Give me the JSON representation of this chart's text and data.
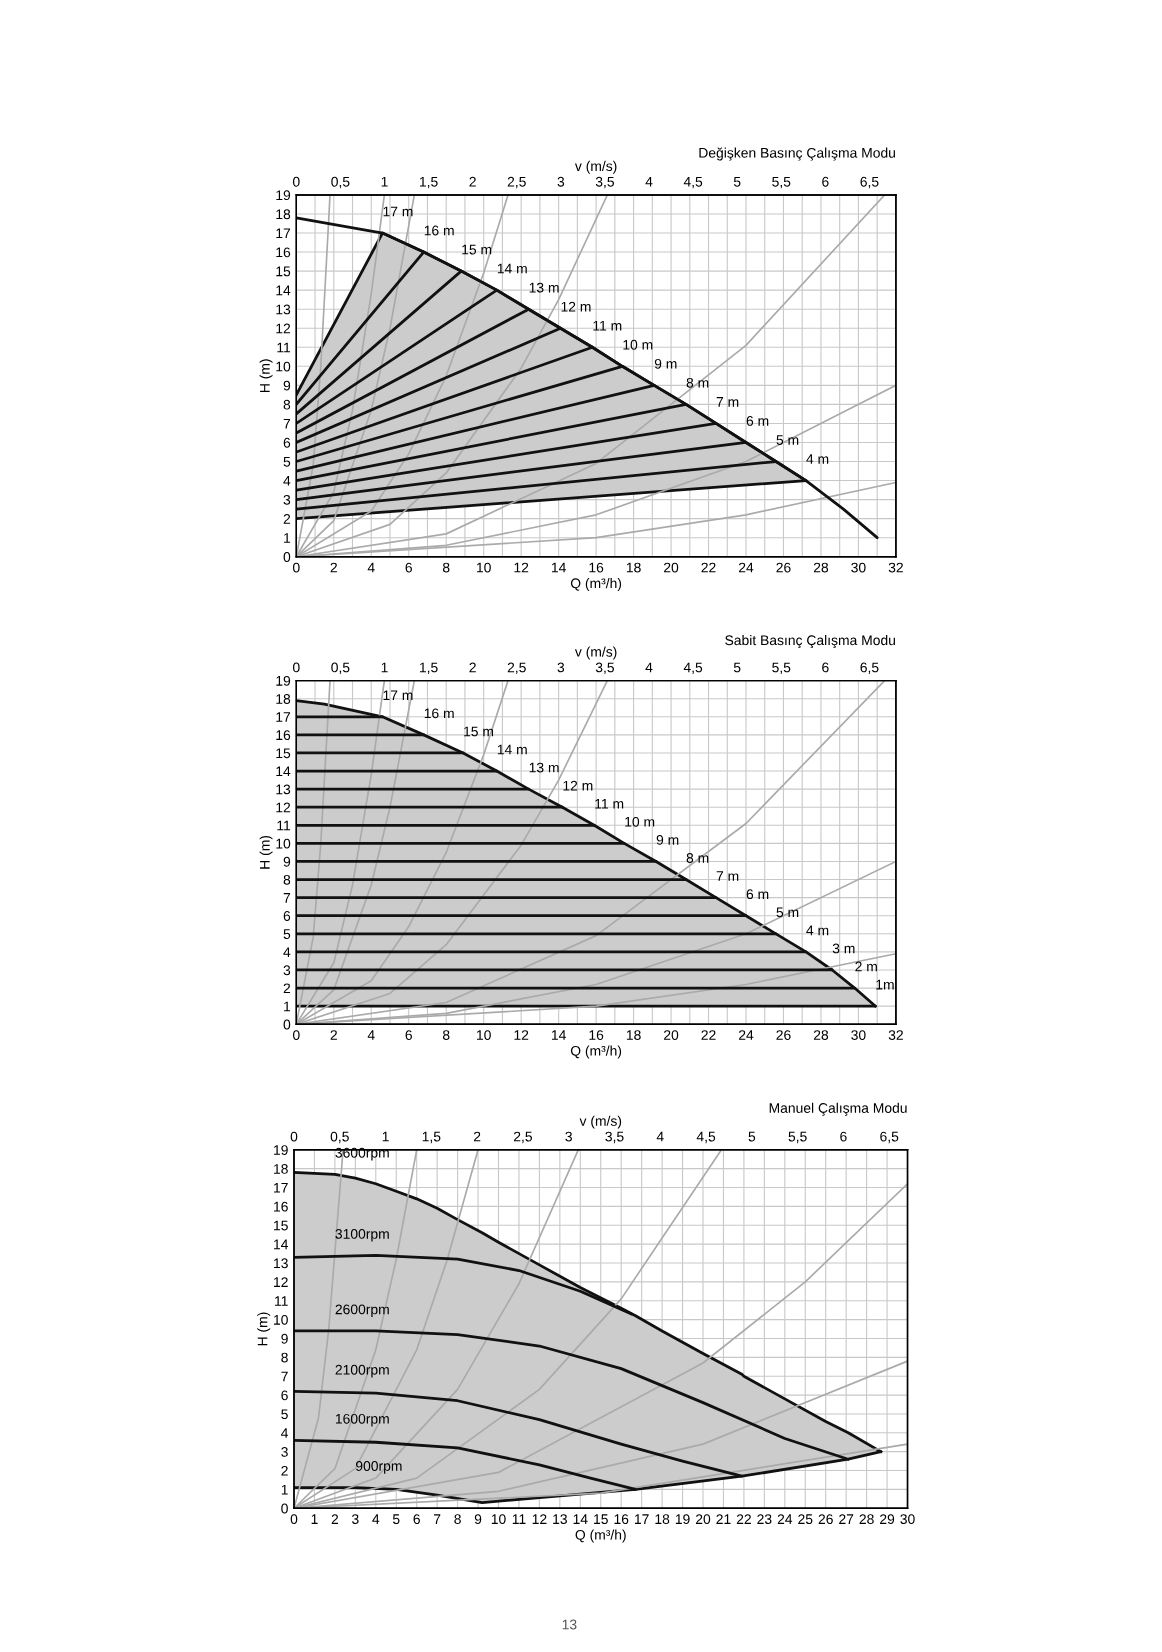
{
  "chart_data": [
    {
      "type": "line",
      "title": "Değişken Basınç Çalışma Modu",
      "xlabel": "Q (m³/h)",
      "ylabel": "H (m)",
      "x2label": "v (m/s)",
      "xlim": [
        0,
        32
      ],
      "ylim": [
        0,
        19
      ],
      "x2lim": [
        0,
        6.8
      ],
      "grid": true,
      "xticks": [
        0,
        {
          "value": 1,
          "label": null
        },
        2,
        {
          "value": 3,
          "label": null
        },
        4,
        {
          "value": 5,
          "label": null
        },
        6,
        {
          "value": 7,
          "label": null
        },
        8,
        {
          "value": 9,
          "label": null
        },
        10,
        {
          "value": 11,
          "label": null
        },
        12,
        {
          "value": 13,
          "label": null
        },
        14,
        {
          "value": 15,
          "label": null
        },
        16,
        {
          "value": 17,
          "label": null
        },
        18,
        {
          "value": 19,
          "label": null
        },
        20,
        {
          "value": 21,
          "label": null
        },
        22,
        {
          "value": 23,
          "label": null
        },
        24,
        {
          "value": 25,
          "label": null
        },
        26,
        {
          "value": 27,
          "label": null
        },
        28,
        {
          "value": 29,
          "label": null
        },
        30,
        {
          "value": 31,
          "label": null
        },
        32
      ],
      "yticks": [
        0,
        1,
        2,
        3,
        4,
        5,
        6,
        7,
        8,
        9,
        10,
        11,
        12,
        13,
        14,
        15,
        16,
        17,
        18,
        19
      ],
      "x2ticks": [
        0,
        {
          "value": 0.5,
          "label": "0,5"
        },
        1,
        {
          "value": 1.5,
          "label": "1,5"
        },
        2,
        {
          "value": 2.5,
          "label": "2,5"
        },
        3,
        {
          "value": 3.5,
          "label": "3,5"
        },
        4,
        {
          "value": 4.5,
          "label": "4,5"
        },
        5,
        {
          "value": 5.5,
          "label": "5,5"
        },
        6,
        {
          "value": 6.5,
          "label": "6,5"
        }
      ],
      "series": [
        {
          "type": "area",
          "color": "#cccccc",
          "x": [
            0,
            4.6,
            6.8,
            8.8,
            10.7,
            12.4,
            14.1,
            15.8,
            17.4,
            19.1,
            20.8,
            22.4,
            24.0,
            25.6,
            27.2
          ],
          "values": [
            8.5,
            17,
            16,
            15,
            14,
            13,
            12,
            11,
            10,
            9,
            8,
            7,
            6,
            5,
            4
          ]
        },
        {
          "color": "#111111",
          "x": [
            0,
            27.2
          ],
          "values": [
            2,
            4
          ]
        },
        {
          "color": "#aaaaaa",
          "x": [
            0,
            0.9,
            1.3,
            1.8
          ],
          "values": [
            0,
            4.8,
            9.9,
            19
          ]
        },
        {
          "color": "#aaaaaa",
          "x": [
            0,
            2,
            3,
            4,
            4.7
          ],
          "values": [
            0,
            3.4,
            7.7,
            13.8,
            19
          ]
        },
        {
          "color": "#aaaaaa",
          "x": [
            0,
            2,
            4,
            5,
            6.3
          ],
          "values": [
            0,
            1.9,
            7.7,
            12,
            19
          ]
        },
        {
          "color": "#aaaaaa",
          "x": [
            0,
            4,
            6,
            8,
            10,
            11.3
          ],
          "values": [
            0,
            2.4,
            5.4,
            9.5,
            14.9,
            19
          ]
        },
        {
          "color": "#aaaaaa",
          "x": [
            0,
            5,
            8,
            12,
            14,
            16.6
          ],
          "values": [
            0,
            1.7,
            4.4,
            9.9,
            13.5,
            19
          ]
        },
        {
          "color": "#aaaaaa",
          "x": [
            0,
            8,
            16,
            24,
            31.4
          ],
          "values": [
            0,
            1.2,
            4.9,
            11.1,
            19
          ]
        },
        {
          "color": "#aaaaaa",
          "x": [
            0,
            8,
            16,
            24,
            32
          ],
          "values": [
            0,
            0.6,
            2.2,
            5,
            9
          ]
        },
        {
          "color": "#aaaaaa",
          "x": [
            0,
            16,
            24,
            32
          ],
          "values": [
            0,
            1,
            2.2,
            3.9
          ]
        },
        {
          "color": "#111111",
          "x": [
            0,
            4.6,
            6.8,
            8.8,
            10.7,
            12.4,
            14.1,
            15.8,
            17.4,
            19.1,
            20.8,
            22.4,
            24.0,
            25.6,
            27.2,
            29.2,
            31
          ],
          "values": [
            17.8,
            17,
            16,
            15,
            14,
            13,
            12,
            11,
            10,
            9,
            8,
            7,
            6,
            5,
            4,
            2.5,
            1
          ]
        },
        {
          "color": "#111111",
          "x": [
            0,
            6.8
          ],
          "values": [
            8,
            16
          ]
        },
        {
          "color": "#111111",
          "x": [
            0,
            8.8
          ],
          "values": [
            7.5,
            15
          ]
        },
        {
          "color": "#111111",
          "x": [
            0,
            10.7
          ],
          "values": [
            7,
            14
          ]
        },
        {
          "color": "#111111",
          "x": [
            0,
            12.4
          ],
          "values": [
            6.5,
            13
          ]
        },
        {
          "color": "#111111",
          "x": [
            0,
            14.1
          ],
          "values": [
            6,
            12
          ]
        },
        {
          "color": "#111111",
          "x": [
            0,
            15.8
          ],
          "values": [
            5.5,
            11
          ]
        },
        {
          "color": "#111111",
          "x": [
            0,
            17.4
          ],
          "values": [
            5,
            10
          ]
        },
        {
          "color": "#111111",
          "x": [
            0,
            19.1
          ],
          "values": [
            4.5,
            9
          ]
        },
        {
          "color": "#111111",
          "x": [
            0,
            20.8
          ],
          "values": [
            4,
            8
          ]
        },
        {
          "color": "#111111",
          "x": [
            0,
            22.4
          ],
          "values": [
            3.5,
            7
          ]
        },
        {
          "color": "#111111",
          "x": [
            0,
            24.0
          ],
          "values": [
            3,
            6
          ]
        },
        {
          "color": "#111111",
          "x": [
            0,
            25.6
          ],
          "values": [
            2.5,
            5
          ]
        }
      ],
      "annotations": [
        {
          "text": "17 m",
          "x": 4.6,
          "y": 17
        },
        {
          "text": "16 m",
          "x": 6.8,
          "y": 16
        },
        {
          "text": "15 m",
          "x": 8.8,
          "y": 15
        },
        {
          "text": "14 m",
          "x": 10.7,
          "y": 14
        },
        {
          "text": "13 m",
          "x": 12.4,
          "y": 13
        },
        {
          "text": "12 m",
          "x": 14.1,
          "y": 12
        },
        {
          "text": "11 m",
          "x": 15.8,
          "y": 11
        },
        {
          "text": "10 m",
          "x": 17.4,
          "y": 10
        },
        {
          "text": "9 m",
          "x": 19.1,
          "y": 9
        },
        {
          "text": "8 m",
          "x": 20.8,
          "y": 8
        },
        {
          "text": "7 m",
          "x": 22.4,
          "y": 7
        },
        {
          "text": "6 m",
          "x": 24.0,
          "y": 6
        },
        {
          "text": "5 m",
          "x": 25.6,
          "y": 5
        },
        {
          "text": "4 m",
          "x": 27.2,
          "y": 4
        }
      ]
    },
    {
      "type": "line",
      "title": "Sabit Basınç Çalışma Modu",
      "xlabel": "Q (m³/h)",
      "ylabel": "H (m)",
      "x2label": "v (m/s)",
      "xlim": [
        0,
        32
      ],
      "ylim": [
        0,
        19
      ],
      "x2lim": [
        0,
        6.8
      ],
      "grid": true,
      "xticks": [
        0,
        {
          "value": 1,
          "label": null
        },
        2,
        {
          "value": 3,
          "label": null
        },
        4,
        {
          "value": 5,
          "label": null
        },
        6,
        {
          "value": 7,
          "label": null
        },
        8,
        {
          "value": 9,
          "label": null
        },
        10,
        {
          "value": 11,
          "label": null
        },
        12,
        {
          "value": 13,
          "label": null
        },
        14,
        {
          "value": 15,
          "label": null
        },
        16,
        {
          "value": 17,
          "label": null
        },
        18,
        {
          "value": 19,
          "label": null
        },
        20,
        {
          "value": 21,
          "label": null
        },
        22,
        {
          "value": 23,
          "label": null
        },
        24,
        {
          "value": 25,
          "label": null
        },
        26,
        {
          "value": 27,
          "label": null
        },
        28,
        {
          "value": 29,
          "label": null
        },
        30,
        {
          "value": 31,
          "label": null
        },
        32
      ],
      "yticks": [
        0,
        1,
        2,
        3,
        4,
        5,
        6,
        7,
        8,
        9,
        10,
        11,
        12,
        13,
        14,
        15,
        16,
        17,
        18,
        19
      ],
      "x2ticks": [
        0,
        {
          "value": 0.5,
          "label": "0,5"
        },
        1,
        {
          "value": 1.5,
          "label": "1,5"
        },
        2,
        {
          "value": 2.5,
          "label": "2,5"
        },
        3,
        {
          "value": 3.5,
          "label": "3,5"
        },
        4,
        {
          "value": 4.5,
          "label": "4,5"
        },
        5,
        {
          "value": 5.5,
          "label": "5,5"
        },
        6,
        {
          "value": 6.5,
          "label": "6,5"
        }
      ],
      "series": [
        {
          "type": "area",
          "color": "#cccccc",
          "x": [
            0,
            1.5,
            4.6,
            6.8,
            8.9,
            10.7,
            12.4,
            14.2,
            15.9,
            17.5,
            19.2,
            20.8,
            22.4,
            24,
            25.6,
            27.2,
            28.6,
            29.8,
            30.9
          ],
          "values": [
            17.9,
            17.7,
            17,
            16,
            15,
            14,
            13,
            12,
            11,
            10,
            9,
            8,
            7,
            6,
            5,
            4,
            3,
            2,
            1
          ]
        },
        {
          "color": "#111111",
          "x": [
            0,
            30.9
          ],
          "values": [
            1,
            1
          ]
        },
        {
          "color": "#aaaaaa",
          "x": [
            0,
            0.9,
            1.3,
            1.8
          ],
          "values": [
            0,
            4.8,
            9.9,
            19
          ]
        },
        {
          "color": "#aaaaaa",
          "x": [
            0,
            2,
            3,
            4,
            4.7
          ],
          "values": [
            0,
            3.4,
            7.7,
            13.8,
            19
          ]
        },
        {
          "color": "#aaaaaa",
          "x": [
            0,
            2,
            4,
            5,
            6.3
          ],
          "values": [
            0,
            1.9,
            7.7,
            12,
            19
          ]
        },
        {
          "color": "#aaaaaa",
          "x": [
            0,
            4,
            6,
            8,
            10,
            11.3
          ],
          "values": [
            0,
            2.4,
            5.4,
            9.5,
            14.9,
            19
          ]
        },
        {
          "color": "#aaaaaa",
          "x": [
            0,
            5,
            8,
            12,
            14,
            16.6
          ],
          "values": [
            0,
            1.7,
            4.4,
            9.9,
            13.5,
            19
          ]
        },
        {
          "color": "#aaaaaa",
          "x": [
            0,
            8,
            16,
            24,
            31.4
          ],
          "values": [
            0,
            1.2,
            4.9,
            11.1,
            19
          ]
        },
        {
          "color": "#aaaaaa",
          "x": [
            0,
            8,
            16,
            24,
            32
          ],
          "values": [
            0,
            0.6,
            2.2,
            5,
            9
          ]
        },
        {
          "color": "#aaaaaa",
          "x": [
            0,
            16,
            24,
            32
          ],
          "values": [
            0,
            1,
            2.2,
            3.9
          ]
        },
        {
          "color": "#111111",
          "x": [
            0,
            4.6
          ],
          "values": [
            17,
            17
          ]
        },
        {
          "color": "#111111",
          "x": [
            0,
            6.8
          ],
          "values": [
            16,
            16
          ]
        },
        {
          "color": "#111111",
          "x": [
            0,
            8.9
          ],
          "values": [
            15,
            15
          ]
        },
        {
          "color": "#111111",
          "x": [
            0,
            10.7
          ],
          "values": [
            14,
            14
          ]
        },
        {
          "color": "#111111",
          "x": [
            0,
            12.4
          ],
          "values": [
            13,
            13
          ]
        },
        {
          "color": "#111111",
          "x": [
            0,
            14.2
          ],
          "values": [
            12,
            12
          ]
        },
        {
          "color": "#111111",
          "x": [
            0,
            15.9
          ],
          "values": [
            11,
            11
          ]
        },
        {
          "color": "#111111",
          "x": [
            0,
            17.5
          ],
          "values": [
            10,
            10
          ]
        },
        {
          "color": "#111111",
          "x": [
            0,
            19.2
          ],
          "values": [
            9,
            9
          ]
        },
        {
          "color": "#111111",
          "x": [
            0,
            20.8
          ],
          "values": [
            8,
            8
          ]
        },
        {
          "color": "#111111",
          "x": [
            0,
            22.4
          ],
          "values": [
            7,
            7
          ]
        },
        {
          "color": "#111111",
          "x": [
            0,
            24
          ],
          "values": [
            6,
            6
          ]
        },
        {
          "color": "#111111",
          "x": [
            0,
            25.6
          ],
          "values": [
            5,
            5
          ]
        },
        {
          "color": "#111111",
          "x": [
            0,
            27.2
          ],
          "values": [
            4,
            4
          ]
        },
        {
          "color": "#111111",
          "x": [
            0,
            28.6
          ],
          "values": [
            3,
            3
          ]
        },
        {
          "color": "#111111",
          "x": [
            0,
            29.8
          ],
          "values": [
            2,
            2
          ]
        }
      ],
      "annotations": [
        {
          "text": "17 m",
          "x": 4.6,
          "y": 17
        },
        {
          "text": "16 m",
          "x": 6.8,
          "y": 16
        },
        {
          "text": "15 m",
          "x": 8.9,
          "y": 15
        },
        {
          "text": "14 m",
          "x": 10.7,
          "y": 14
        },
        {
          "text": "13 m",
          "x": 12.4,
          "y": 13
        },
        {
          "text": "12 m",
          "x": 14.2,
          "y": 12
        },
        {
          "text": "11 m",
          "x": 15.9,
          "y": 11
        },
        {
          "text": "10 m",
          "x": 17.5,
          "y": 10
        },
        {
          "text": "9 m",
          "x": 19.2,
          "y": 9
        },
        {
          "text": "8 m",
          "x": 20.8,
          "y": 8
        },
        {
          "text": "7 m",
          "x": 22.4,
          "y": 7
        },
        {
          "text": "6 m",
          "x": 24,
          "y": 6
        },
        {
          "text": "5 m",
          "x": 25.6,
          "y": 5
        },
        {
          "text": "4 m",
          "x": 27.2,
          "y": 4
        },
        {
          "text": "3 m",
          "x": 28.6,
          "y": 3
        },
        {
          "text": "2 m",
          "x": 29.8,
          "y": 2
        },
        {
          "text": "1m",
          "x": 30.9,
          "y": 1
        }
      ]
    },
    {
      "type": "line",
      "title": "Manuel Çalışma Modu",
      "xlabel": "Q (m³/h)",
      "ylabel": "H (m)",
      "x2label": "v (m/s)",
      "xlim": [
        0,
        30
      ],
      "ylim": [
        0,
        19
      ],
      "x2lim": [
        0,
        6.7
      ],
      "grid": true,
      "xticks": [
        0,
        1,
        2,
        3,
        4,
        5,
        6,
        7,
        8,
        9,
        10,
        11,
        12,
        13,
        14,
        15,
        16,
        17,
        18,
        19,
        20,
        21,
        22,
        23,
        24,
        25,
        26,
        27,
        28,
        29,
        30
      ],
      "yticks": [
        0,
        1,
        2,
        3,
        4,
        5,
        6,
        7,
        8,
        9,
        10,
        11,
        12,
        13,
        14,
        15,
        16,
        17,
        18,
        19
      ],
      "x2ticks": [
        0,
        {
          "value": 0.5,
          "label": "0,5"
        },
        1,
        {
          "value": 1.5,
          "label": "1,5"
        },
        2,
        {
          "value": 2.5,
          "label": "2,5"
        },
        3,
        {
          "value": 3.5,
          "label": "3,5"
        },
        4,
        {
          "value": 4.5,
          "label": "4,5"
        },
        5,
        {
          "value": 5.5,
          "label": "5,5"
        },
        6,
        {
          "value": 6.5,
          "label": "6,5"
        }
      ],
      "series": [
        {
          "type": "area",
          "color": "#cccccc",
          "x": [
            0,
            2,
            3,
            4,
            5,
            6,
            7,
            8,
            9.2,
            10,
            12,
            14,
            16,
            16.7,
            18,
            20,
            21.9,
            22,
            24,
            26,
            27.1,
            28.7
          ],
          "values": [
            17.8,
            17.7,
            17.5,
            17.2,
            16.8,
            16.4,
            15.9,
            15.3,
            14.6,
            14.1,
            12.9,
            11.7,
            10.6,
            10.2,
            9.4,
            8.2,
            7.1,
            7,
            5.8,
            4.6,
            4,
            3
          ]
        },
        {
          "color": "#111111",
          "x": [
            0,
            3,
            5,
            7,
            9.2,
            16.7,
            21.9,
            27.1,
            28.7
          ],
          "values": [
            1.1,
            1.1,
            1,
            0.7,
            0.3,
            1,
            1.7,
            2.6,
            3
          ]
        },
        {
          "color": "#aaaaaa",
          "x": [
            0,
            1.2,
            1.7,
            2.4
          ],
          "values": [
            0,
            4.8,
            9.5,
            19
          ]
        },
        {
          "color": "#aaaaaa",
          "x": [
            0,
            2,
            4,
            5,
            6
          ],
          "values": [
            0,
            2.1,
            8.4,
            13.2,
            19
          ]
        },
        {
          "color": "#aaaaaa",
          "x": [
            0,
            3,
            6,
            7.5,
            9
          ],
          "values": [
            0,
            2.1,
            8.4,
            13.2,
            19
          ]
        },
        {
          "color": "#aaaaaa",
          "x": [
            0,
            4,
            8,
            11,
            13.9
          ],
          "values": [
            0,
            1.6,
            6.3,
            11.9,
            19
          ]
        },
        {
          "color": "#aaaaaa",
          "x": [
            0,
            6,
            12,
            16,
            20.9
          ],
          "values": [
            0,
            1.6,
            6.3,
            11.1,
            19
          ]
        },
        {
          "color": "#aaaaaa",
          "x": [
            0,
            10,
            20,
            25,
            30
          ],
          "values": [
            0,
            1.9,
            7.7,
            12,
            17.2
          ]
        },
        {
          "color": "#aaaaaa",
          "x": [
            0,
            10,
            20,
            30
          ],
          "values": [
            0,
            0.9,
            3.4,
            7.8
          ]
        },
        {
          "color": "#aaaaaa",
          "x": [
            0,
            15,
            30
          ],
          "values": [
            0,
            0.8,
            3.4
          ]
        },
        {
          "color": "#111111",
          "x": [
            0,
            4,
            8,
            11,
            14,
            16.5
          ],
          "values": [
            13.3,
            13.4,
            13.2,
            12.6,
            11.5,
            10.3
          ]
        },
        {
          "color": "#111111",
          "x": [
            0,
            4,
            8,
            12,
            16,
            20,
            24,
            27.1
          ],
          "values": [
            9.4,
            9.4,
            9.2,
            8.6,
            7.4,
            5.6,
            3.7,
            2.6
          ]
        },
        {
          "color": "#111111",
          "x": [
            0,
            4,
            8,
            12,
            16,
            19,
            21.9
          ],
          "values": [
            6.2,
            6.1,
            5.7,
            4.7,
            3.4,
            2.5,
            1.7
          ]
        },
        {
          "color": "#111111",
          "x": [
            0,
            4,
            8,
            12,
            14.5,
            16.7
          ],
          "values": [
            3.6,
            3.5,
            3.2,
            2.3,
            1.6,
            1
          ]
        }
      ],
      "annotations": [
        {
          "text": "3600rpm",
          "x": 2,
          "y": 17.7
        },
        {
          "text": "3100rpm",
          "x": 2,
          "y": 13.4
        },
        {
          "text": "2600rpm",
          "x": 2,
          "y": 9.4
        },
        {
          "text": "2100rpm",
          "x": 2,
          "y": 6.2
        },
        {
          "text": "1600rpm",
          "x": 2,
          "y": 3.6
        },
        {
          "text": "900rpm",
          "x": 3,
          "y": 1.1
        },
        "13"
      ]
    }
  ]
}
